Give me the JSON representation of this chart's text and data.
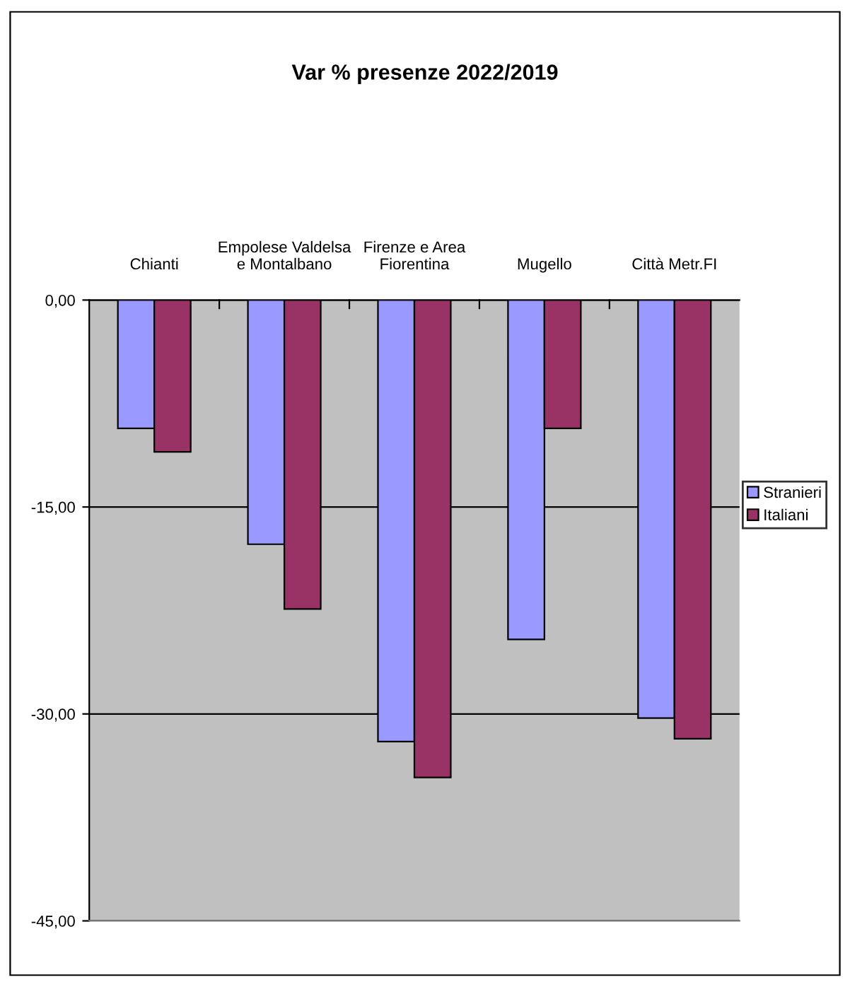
{
  "chart_data": {
    "type": "bar",
    "title": "Var % presenze 2022/2019",
    "categories": [
      "Chianti",
      "Empolese Valdelsa\ne Montalbano",
      "Firenze e Area\nFiorentina",
      "Mugello",
      "Città Metr.FI"
    ],
    "series": [
      {
        "name": "Stranieri",
        "color": "#9999ff",
        "values": [
          -9.3,
          -17.7,
          -32.0,
          -24.6,
          -30.3
        ]
      },
      {
        "name": "Italiani",
        "color": "#993366",
        "values": [
          -11.0,
          -22.4,
          -34.6,
          -9.3,
          -31.8
        ]
      }
    ],
    "ylim": [
      -45,
      0
    ],
    "yticks": [
      {
        "value": 0,
        "label": "0,00"
      },
      {
        "value": -15,
        "label": "-15,00"
      },
      {
        "value": -30,
        "label": "-30,00"
      },
      {
        "value": -45,
        "label": "-45,00"
      }
    ],
    "grid": "y",
    "legend": "right"
  }
}
